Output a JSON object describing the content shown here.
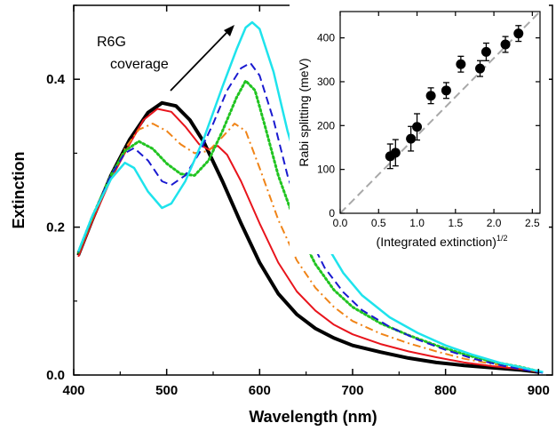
{
  "chart_data": [
    {
      "type": "line",
      "xlabel": "Wavelength (nm)",
      "ylabel": "Extinction",
      "xlim": [
        400,
        915
      ],
      "ylim": [
        0,
        0.5
      ],
      "xticks": [
        400,
        500,
        600,
        700,
        800,
        900
      ],
      "yticks": [
        0.0,
        0.2,
        0.4
      ],
      "ytick_labels": [
        "0.0",
        "0.2",
        "0.4"
      ],
      "annotation": {
        "line1": "R6G",
        "line2": "coverage",
        "arrow": "up-right"
      },
      "series": [
        {
          "color": "#000000",
          "style": "solid",
          "width": 4,
          "points": [
            [
              405,
              0.162
            ],
            [
              420,
              0.21
            ],
            [
              440,
              0.27
            ],
            [
              460,
              0.318
            ],
            [
              480,
              0.355
            ],
            [
              495,
              0.368
            ],
            [
              510,
              0.364
            ],
            [
              525,
              0.345
            ],
            [
              540,
              0.315
            ],
            [
              560,
              0.262
            ],
            [
              580,
              0.205
            ],
            [
              600,
              0.152
            ],
            [
              620,
              0.11
            ],
            [
              640,
              0.082
            ],
            [
              660,
              0.063
            ],
            [
              680,
              0.05
            ],
            [
              700,
              0.04
            ],
            [
              730,
              0.031
            ],
            [
              760,
              0.023
            ],
            [
              790,
              0.017
            ],
            [
              820,
              0.013
            ],
            [
              850,
              0.01
            ],
            [
              880,
              0.007
            ],
            [
              900,
              0.004
            ]
          ]
        },
        {
          "color": "#e8141c",
          "style": "solid",
          "width": 2,
          "points": [
            [
              405,
              0.16
            ],
            [
              420,
              0.208
            ],
            [
              440,
              0.265
            ],
            [
              460,
              0.312
            ],
            [
              475,
              0.345
            ],
            [
              490,
              0.36
            ],
            [
              505,
              0.356
            ],
            [
              520,
              0.336
            ],
            [
              535,
              0.312
            ],
            [
              545,
              0.305
            ],
            [
              555,
              0.31
            ],
            [
              565,
              0.298
            ],
            [
              580,
              0.262
            ],
            [
              600,
              0.205
            ],
            [
              620,
              0.152
            ],
            [
              640,
              0.113
            ],
            [
              660,
              0.087
            ],
            [
              680,
              0.068
            ],
            [
              700,
              0.055
            ],
            [
              730,
              0.042
            ],
            [
              760,
              0.032
            ],
            [
              790,
              0.024
            ],
            [
              820,
              0.017
            ],
            [
              850,
              0.012
            ],
            [
              880,
              0.008
            ],
            [
              900,
              0.004
            ]
          ]
        },
        {
          "color": "#f08418",
          "style": "dashdot",
          "width": 2,
          "points": [
            [
              405,
              0.165
            ],
            [
              420,
              0.212
            ],
            [
              440,
              0.267
            ],
            [
              455,
              0.306
            ],
            [
              470,
              0.332
            ],
            [
              485,
              0.34
            ],
            [
              500,
              0.33
            ],
            [
              515,
              0.312
            ],
            [
              530,
              0.3
            ],
            [
              545,
              0.303
            ],
            [
              560,
              0.322
            ],
            [
              573,
              0.34
            ],
            [
              585,
              0.33
            ],
            [
              600,
              0.28
            ],
            [
              620,
              0.21
            ],
            [
              640,
              0.155
            ],
            [
              660,
              0.118
            ],
            [
              680,
              0.092
            ],
            [
              700,
              0.073
            ],
            [
              730,
              0.056
            ],
            [
              760,
              0.043
            ],
            [
              790,
              0.032
            ],
            [
              820,
              0.022
            ],
            [
              850,
              0.015
            ],
            [
              880,
              0.01
            ],
            [
              900,
              0.005
            ]
          ]
        },
        {
          "color": "#21c421",
          "style": "dotted",
          "width": 3,
          "points": [
            [
              405,
              0.166
            ],
            [
              420,
              0.214
            ],
            [
              440,
              0.27
            ],
            [
              455,
              0.303
            ],
            [
              470,
              0.316
            ],
            [
              485,
              0.306
            ],
            [
              500,
              0.286
            ],
            [
              515,
              0.272
            ],
            [
              530,
              0.27
            ],
            [
              545,
              0.29
            ],
            [
              560,
              0.33
            ],
            [
              575,
              0.375
            ],
            [
              585,
              0.398
            ],
            [
              595,
              0.385
            ],
            [
              605,
              0.34
            ],
            [
              620,
              0.27
            ],
            [
              640,
              0.2
            ],
            [
              660,
              0.15
            ],
            [
              680,
              0.115
            ],
            [
              700,
              0.092
            ],
            [
              730,
              0.07
            ],
            [
              760,
              0.054
            ],
            [
              790,
              0.04
            ],
            [
              820,
              0.028
            ],
            [
              850,
              0.018
            ],
            [
              880,
              0.011
            ],
            [
              900,
              0.005
            ]
          ]
        },
        {
          "color": "#1a1ad0",
          "style": "dashed",
          "width": 2,
          "points": [
            [
              405,
              0.166
            ],
            [
              420,
              0.214
            ],
            [
              440,
              0.27
            ],
            [
              455,
              0.3
            ],
            [
              465,
              0.307
            ],
            [
              480,
              0.29
            ],
            [
              495,
              0.262
            ],
            [
              505,
              0.257
            ],
            [
              520,
              0.27
            ],
            [
              535,
              0.3
            ],
            [
              550,
              0.34
            ],
            [
              565,
              0.385
            ],
            [
              580,
              0.415
            ],
            [
              590,
              0.422
            ],
            [
              600,
              0.405
            ],
            [
              615,
              0.345
            ],
            [
              630,
              0.27
            ],
            [
              650,
              0.195
            ],
            [
              670,
              0.145
            ],
            [
              690,
              0.112
            ],
            [
              710,
              0.088
            ],
            [
              740,
              0.065
            ],
            [
              770,
              0.048
            ],
            [
              800,
              0.034
            ],
            [
              830,
              0.022
            ],
            [
              860,
              0.013
            ],
            [
              890,
              0.006
            ],
            [
              905,
              0.003
            ]
          ]
        },
        {
          "color": "#1ee3ec",
          "style": "solid",
          "width": 2.5,
          "points": [
            [
              405,
              0.167
            ],
            [
              420,
              0.215
            ],
            [
              440,
              0.265
            ],
            [
              455,
              0.287
            ],
            [
              465,
              0.28
            ],
            [
              480,
              0.248
            ],
            [
              495,
              0.226
            ],
            [
              505,
              0.232
            ],
            [
              520,
              0.262
            ],
            [
              540,
              0.32
            ],
            [
              560,
              0.39
            ],
            [
              575,
              0.44
            ],
            [
              585,
              0.47
            ],
            [
              592,
              0.477
            ],
            [
              600,
              0.468
            ],
            [
              615,
              0.41
            ],
            [
              630,
              0.33
            ],
            [
              650,
              0.245
            ],
            [
              670,
              0.18
            ],
            [
              690,
              0.138
            ],
            [
              710,
              0.108
            ],
            [
              740,
              0.078
            ],
            [
              770,
              0.057
            ],
            [
              800,
              0.04
            ],
            [
              830,
              0.027
            ],
            [
              860,
              0.016
            ],
            [
              890,
              0.008
            ],
            [
              905,
              0.004
            ]
          ]
        }
      ]
    },
    {
      "type": "scatter",
      "xlabel_main": "(Integrated extinction)",
      "xlabel_sup": "1/2",
      "ylabel": "Rabi splitting (meV)",
      "xlim": [
        0,
        2.6
      ],
      "ylim": [
        0,
        460
      ],
      "xticks": [
        0.0,
        0.5,
        1.0,
        1.5,
        2.0,
        2.5
      ],
      "xtick_labels": [
        "0.0",
        "0.5",
        "1.0",
        "1.5",
        "2.0",
        "2.5"
      ],
      "yticks": [
        0,
        100,
        200,
        300,
        400
      ],
      "fit_line": [
        [
          0,
          0
        ],
        [
          2.6,
          460
        ]
      ],
      "points": [
        {
          "x": 0.65,
          "y": 130,
          "err": 28
        },
        {
          "x": 0.72,
          "y": 138,
          "err": 30
        },
        {
          "x": 0.92,
          "y": 170,
          "err": 28
        },
        {
          "x": 1.0,
          "y": 197,
          "err": 30
        },
        {
          "x": 1.18,
          "y": 268,
          "err": 18
        },
        {
          "x": 1.38,
          "y": 280,
          "err": 18
        },
        {
          "x": 1.57,
          "y": 340,
          "err": 18
        },
        {
          "x": 1.82,
          "y": 330,
          "err": 18
        },
        {
          "x": 1.9,
          "y": 368,
          "err": 20
        },
        {
          "x": 2.15,
          "y": 385,
          "err": 18
        },
        {
          "x": 2.32,
          "y": 410,
          "err": 18
        }
      ]
    }
  ]
}
